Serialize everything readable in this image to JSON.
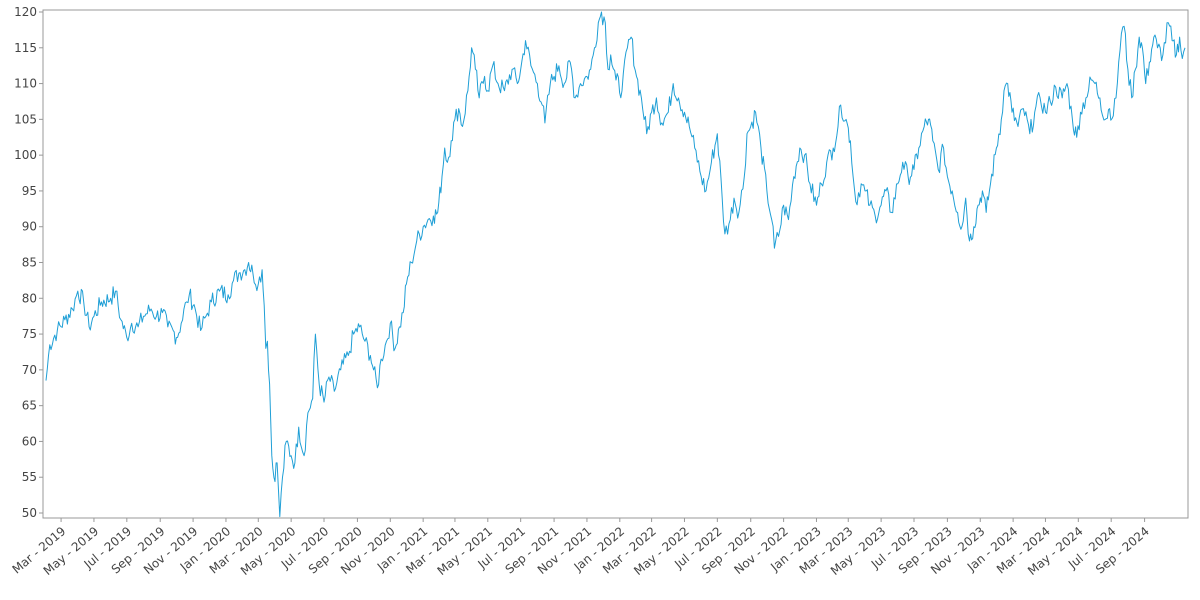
{
  "chart_data": {
    "type": "line",
    "title": "",
    "xlabel": "",
    "ylabel": "",
    "x_start": "2019-02-01",
    "x_end": "2024-11-15",
    "ylim": [
      49,
      120
    ],
    "grid": false,
    "legend": "none",
    "y_ticks": [
      50,
      55,
      60,
      65,
      70,
      75,
      80,
      85,
      90,
      95,
      100,
      105,
      110,
      115,
      120
    ],
    "x_ticks": [
      {
        "date": "2019-03-01",
        "label": "Mar - 2019"
      },
      {
        "date": "2019-05-01",
        "label": "May - 2019"
      },
      {
        "date": "2019-07-01",
        "label": "Jul - 2019"
      },
      {
        "date": "2019-09-01",
        "label": "Sep - 2019"
      },
      {
        "date": "2019-11-01",
        "label": "Nov - 2019"
      },
      {
        "date": "2020-01-01",
        "label": "Jan - 2020"
      },
      {
        "date": "2020-03-01",
        "label": "Mar - 2020"
      },
      {
        "date": "2020-05-01",
        "label": "May - 2020"
      },
      {
        "date": "2020-07-01",
        "label": "Jul - 2020"
      },
      {
        "date": "2020-09-01",
        "label": "Sep - 2020"
      },
      {
        "date": "2020-11-01",
        "label": "Nov - 2020"
      },
      {
        "date": "2021-01-01",
        "label": "Jan - 2021"
      },
      {
        "date": "2021-03-01",
        "label": "Mar - 2021"
      },
      {
        "date": "2021-05-01",
        "label": "May - 2021"
      },
      {
        "date": "2021-07-01",
        "label": "Jul - 2021"
      },
      {
        "date": "2021-09-01",
        "label": "Sep - 2021"
      },
      {
        "date": "2021-11-01",
        "label": "Nov - 2021"
      },
      {
        "date": "2022-01-01",
        "label": "Jan - 2022"
      },
      {
        "date": "2022-03-01",
        "label": "Mar - 2022"
      },
      {
        "date": "2022-05-01",
        "label": "May - 2022"
      },
      {
        "date": "2022-07-01",
        "label": "Jul - 2022"
      },
      {
        "date": "2022-09-01",
        "label": "Sep - 2022"
      },
      {
        "date": "2022-11-01",
        "label": "Nov - 2022"
      },
      {
        "date": "2023-01-01",
        "label": "Jan - 2023"
      },
      {
        "date": "2023-03-01",
        "label": "Mar - 2023"
      },
      {
        "date": "2023-05-01",
        "label": "May - 2023"
      },
      {
        "date": "2023-07-01",
        "label": "Jul - 2023"
      },
      {
        "date": "2023-09-01",
        "label": "Sep - 2023"
      },
      {
        "date": "2023-11-01",
        "label": "Nov - 2023"
      },
      {
        "date": "2024-01-01",
        "label": "Jan - 2024"
      },
      {
        "date": "2024-03-01",
        "label": "Mar - 2024"
      },
      {
        "date": "2024-05-01",
        "label": "May - 2024"
      },
      {
        "date": "2024-07-01",
        "label": "Jul - 2024"
      },
      {
        "date": "2024-09-01",
        "label": "Sep - 2024"
      }
    ],
    "series": [
      {
        "color": "#1f9fd6",
        "points": [
          [
            "2019-02-01",
            68.5
          ],
          [
            "2019-02-08",
            73.5
          ],
          [
            "2019-02-22",
            75.5
          ],
          [
            "2019-03-08",
            77.0
          ],
          [
            "2019-03-22",
            78.5
          ],
          [
            "2019-04-01",
            81.0
          ],
          [
            "2019-04-12",
            79.5
          ],
          [
            "2019-04-22",
            76.0
          ],
          [
            "2019-05-01",
            77.5
          ],
          [
            "2019-05-15",
            79.5
          ],
          [
            "2019-06-01",
            80.0
          ],
          [
            "2019-06-10",
            81.0
          ],
          [
            "2019-06-20",
            77.0
          ],
          [
            "2019-07-01",
            74.5
          ],
          [
            "2019-07-10",
            76.5
          ],
          [
            "2019-07-22",
            76.0
          ],
          [
            "2019-08-01",
            77.5
          ],
          [
            "2019-08-15",
            78.5
          ],
          [
            "2019-08-25",
            77.5
          ],
          [
            "2019-09-05",
            78.0
          ],
          [
            "2019-09-15",
            76.0
          ],
          [
            "2019-09-25",
            75.5
          ],
          [
            "2019-10-01",
            74.5
          ],
          [
            "2019-10-10",
            76.5
          ],
          [
            "2019-10-20",
            79.5
          ],
          [
            "2019-10-25",
            80.5
          ],
          [
            "2019-11-05",
            78.5
          ],
          [
            "2019-11-15",
            75.5
          ],
          [
            "2019-11-25",
            77.5
          ],
          [
            "2019-12-05",
            79.5
          ],
          [
            "2019-12-20",
            81.0
          ],
          [
            "2020-01-05",
            80.5
          ],
          [
            "2020-01-15",
            82.5
          ],
          [
            "2020-01-25",
            83.5
          ],
          [
            "2020-02-05",
            84.0
          ],
          [
            "2020-02-12",
            85.0
          ],
          [
            "2020-02-20",
            83.5
          ],
          [
            "2020-03-01",
            82.0
          ],
          [
            "2020-03-08",
            84.0
          ],
          [
            "2020-03-12",
            79.0
          ],
          [
            "2020-03-15",
            73.0
          ],
          [
            "2020-03-18",
            74.0
          ],
          [
            "2020-03-22",
            68.0
          ],
          [
            "2020-03-26",
            58.0
          ],
          [
            "2020-03-30",
            55.0
          ],
          [
            "2020-04-05",
            57.0
          ],
          [
            "2020-04-10",
            49.5
          ],
          [
            "2020-04-15",
            55.0
          ],
          [
            "2020-04-22",
            60.0
          ],
          [
            "2020-05-01",
            58.0
          ],
          [
            "2020-05-08",
            57.0
          ],
          [
            "2020-05-15",
            62.0
          ],
          [
            "2020-05-25",
            58.0
          ],
          [
            "2020-06-01",
            64.0
          ],
          [
            "2020-06-10",
            66.0
          ],
          [
            "2020-06-15",
            75.0
          ],
          [
            "2020-06-22",
            68.0
          ],
          [
            "2020-07-01",
            65.5
          ],
          [
            "2020-07-10",
            69.0
          ],
          [
            "2020-07-20",
            67.0
          ],
          [
            "2020-08-01",
            70.0
          ],
          [
            "2020-08-15",
            72.0
          ],
          [
            "2020-08-25",
            75.0
          ],
          [
            "2020-09-05",
            76.0
          ],
          [
            "2020-09-15",
            74.0
          ],
          [
            "2020-09-25",
            72.0
          ],
          [
            "2020-10-01",
            70.0
          ],
          [
            "2020-10-08",
            67.5
          ],
          [
            "2020-10-15",
            71.5
          ],
          [
            "2020-10-25",
            74.0
          ],
          [
            "2020-11-01",
            76.5
          ],
          [
            "2020-11-10",
            73.0
          ],
          [
            "2020-11-18",
            76.0
          ],
          [
            "2020-11-25",
            78.0
          ],
          [
            "2020-12-01",
            82.0
          ],
          [
            "2020-12-10",
            85.0
          ],
          [
            "2020-12-20",
            88.0
          ],
          [
            "2021-01-01",
            90.0
          ],
          [
            "2021-01-10",
            91.0
          ],
          [
            "2021-01-20",
            91.5
          ],
          [
            "2021-01-28",
            92.0
          ],
          [
            "2021-02-05",
            97.0
          ],
          [
            "2021-02-10",
            101.0
          ],
          [
            "2021-02-15",
            99.0
          ],
          [
            "2021-02-22",
            102.0
          ],
          [
            "2021-03-01",
            105.0
          ],
          [
            "2021-03-08",
            106.5
          ],
          [
            "2021-03-15",
            104.0
          ],
          [
            "2021-03-25",
            109.0
          ],
          [
            "2021-04-01",
            115.0
          ],
          [
            "2021-04-08",
            112.0
          ],
          [
            "2021-04-15",
            108.0
          ],
          [
            "2021-04-25",
            111.0
          ],
          [
            "2021-05-01",
            109.0
          ],
          [
            "2021-05-10",
            112.5
          ],
          [
            "2021-05-20",
            110.0
          ],
          [
            "2021-06-01",
            109.0
          ],
          [
            "2021-06-15",
            112.0
          ],
          [
            "2021-06-25",
            110.0
          ],
          [
            "2021-07-01",
            112.0
          ],
          [
            "2021-07-10",
            116.0
          ],
          [
            "2021-07-20",
            112.5
          ],
          [
            "2021-08-01",
            110.0
          ],
          [
            "2021-08-10",
            107.0
          ],
          [
            "2021-08-15",
            104.5
          ],
          [
            "2021-08-25",
            110.0
          ],
          [
            "2021-09-01",
            111.0
          ],
          [
            "2021-09-10",
            112.5
          ],
          [
            "2021-09-20",
            110.0
          ],
          [
            "2021-10-01",
            113.0
          ],
          [
            "2021-10-10",
            108.0
          ],
          [
            "2021-10-20",
            110.0
          ],
          [
            "2021-11-01",
            111.0
          ],
          [
            "2021-11-08",
            112.0
          ],
          [
            "2021-11-15",
            115.0
          ],
          [
            "2021-11-22",
            118.5
          ],
          [
            "2021-11-28",
            120.0
          ],
          [
            "2021-12-05",
            118.5
          ],
          [
            "2021-12-10",
            112.0
          ],
          [
            "2021-12-15",
            114.0
          ],
          [
            "2021-12-25",
            110.5
          ],
          [
            "2022-01-05",
            109.0
          ],
          [
            "2022-01-15",
            115.0
          ],
          [
            "2022-01-22",
            116.5
          ],
          [
            "2022-02-01",
            111.0
          ],
          [
            "2022-02-10",
            108.0
          ],
          [
            "2022-02-20",
            103.0
          ],
          [
            "2022-03-01",
            106.0
          ],
          [
            "2022-03-10",
            108.0
          ],
          [
            "2022-03-20",
            104.5
          ],
          [
            "2022-04-01",
            106.0
          ],
          [
            "2022-04-10",
            110.0
          ],
          [
            "2022-04-20",
            108.0
          ],
          [
            "2022-05-01",
            106.0
          ],
          [
            "2022-05-10",
            104.0
          ],
          [
            "2022-05-20",
            101.0
          ],
          [
            "2022-06-01",
            97.0
          ],
          [
            "2022-06-10",
            95.0
          ],
          [
            "2022-06-20",
            99.0
          ],
          [
            "2022-07-01",
            103.0
          ],
          [
            "2022-07-10",
            94.0
          ],
          [
            "2022-07-15",
            89.0
          ],
          [
            "2022-07-25",
            91.0
          ],
          [
            "2022-08-01",
            94.0
          ],
          [
            "2022-08-10",
            92.0
          ],
          [
            "2022-08-20",
            97.0
          ],
          [
            "2022-08-25",
            103.0
          ],
          [
            "2022-09-01",
            104.0
          ],
          [
            "2022-09-10",
            106.0
          ],
          [
            "2022-09-20",
            101.0
          ],
          [
            "2022-10-01",
            95.0
          ],
          [
            "2022-10-10",
            91.0
          ],
          [
            "2022-10-15",
            87.0
          ],
          [
            "2022-10-25",
            89.5
          ],
          [
            "2022-11-01",
            93.0
          ],
          [
            "2022-11-10",
            91.0
          ],
          [
            "2022-11-20",
            97.0
          ],
          [
            "2022-12-01",
            101.0
          ],
          [
            "2022-12-10",
            100.0
          ],
          [
            "2022-12-20",
            96.0
          ],
          [
            "2023-01-01",
            93.0
          ],
          [
            "2023-01-10",
            96.0
          ],
          [
            "2023-01-20",
            99.0
          ],
          [
            "2023-02-01",
            101.0
          ],
          [
            "2023-02-10",
            104.0
          ],
          [
            "2023-02-15",
            107.0
          ],
          [
            "2023-02-25",
            105.0
          ],
          [
            "2023-03-05",
            102.0
          ],
          [
            "2023-03-10",
            97.0
          ],
          [
            "2023-03-15",
            93.5
          ],
          [
            "2023-03-25",
            96.0
          ],
          [
            "2023-04-01",
            95.0
          ],
          [
            "2023-04-10",
            93.0
          ],
          [
            "2023-04-20",
            91.5
          ],
          [
            "2023-05-01",
            93.0
          ],
          [
            "2023-05-10",
            95.0
          ],
          [
            "2023-05-20",
            92.0
          ],
          [
            "2023-06-01",
            96.0
          ],
          [
            "2023-06-10",
            99.0
          ],
          [
            "2023-06-20",
            97.0
          ],
          [
            "2023-07-01",
            98.0
          ],
          [
            "2023-07-10",
            101.0
          ],
          [
            "2023-07-20",
            104.0
          ],
          [
            "2023-07-28",
            105.0
          ],
          [
            "2023-08-05",
            102.0
          ],
          [
            "2023-08-15",
            98.0
          ],
          [
            "2023-08-25",
            101.0
          ],
          [
            "2023-09-01",
            97.0
          ],
          [
            "2023-09-10",
            95.0
          ],
          [
            "2023-09-20",
            92.0
          ],
          [
            "2023-09-28",
            90.0
          ],
          [
            "2023-10-05",
            94.0
          ],
          [
            "2023-10-12",
            88.0
          ],
          [
            "2023-10-20",
            90.0
          ],
          [
            "2023-10-28",
            93.0
          ],
          [
            "2023-11-05",
            95.0
          ],
          [
            "2023-11-12",
            92.0
          ],
          [
            "2023-11-20",
            96.0
          ],
          [
            "2023-12-01",
            101.0
          ],
          [
            "2023-12-10",
            105.0
          ],
          [
            "2023-12-15",
            109.0
          ],
          [
            "2023-12-22",
            110.0
          ],
          [
            "2023-12-30",
            106.0
          ],
          [
            "2024-01-10",
            104.0
          ],
          [
            "2024-01-20",
            106.5
          ],
          [
            "2024-02-01",
            103.0
          ],
          [
            "2024-02-10",
            106.0
          ],
          [
            "2024-02-20",
            108.0
          ],
          [
            "2024-03-01",
            106.0
          ],
          [
            "2024-03-10",
            107.5
          ],
          [
            "2024-03-20",
            109.5
          ],
          [
            "2024-04-01",
            108.0
          ],
          [
            "2024-04-10",
            110.0
          ],
          [
            "2024-04-20",
            105.0
          ],
          [
            "2024-04-28",
            102.5
          ],
          [
            "2024-05-05",
            106.0
          ],
          [
            "2024-05-15",
            108.0
          ],
          [
            "2024-05-25",
            110.5
          ],
          [
            "2024-06-01",
            110.0
          ],
          [
            "2024-06-10",
            108.0
          ],
          [
            "2024-06-20",
            105.0
          ],
          [
            "2024-06-28",
            106.5
          ],
          [
            "2024-07-05",
            105.5
          ],
          [
            "2024-07-10",
            108.0
          ],
          [
            "2024-07-15",
            113.0
          ],
          [
            "2024-07-20",
            117.0
          ],
          [
            "2024-07-25",
            118.0
          ],
          [
            "2024-08-01",
            112.0
          ],
          [
            "2024-08-08",
            108.0
          ],
          [
            "2024-08-15",
            112.0
          ],
          [
            "2024-08-22",
            116.5
          ],
          [
            "2024-08-28",
            115.0
          ],
          [
            "2024-09-03",
            110.0
          ],
          [
            "2024-09-10",
            113.0
          ],
          [
            "2024-09-18",
            116.5
          ],
          [
            "2024-09-25",
            115.0
          ],
          [
            "2024-10-05",
            114.0
          ],
          [
            "2024-10-15",
            118.5
          ],
          [
            "2024-10-22",
            116.0
          ],
          [
            "2024-10-30",
            114.0
          ],
          [
            "2024-11-05",
            116.5
          ],
          [
            "2024-11-10",
            113.5
          ],
          [
            "2024-11-15",
            115.0
          ]
        ]
      }
    ]
  }
}
